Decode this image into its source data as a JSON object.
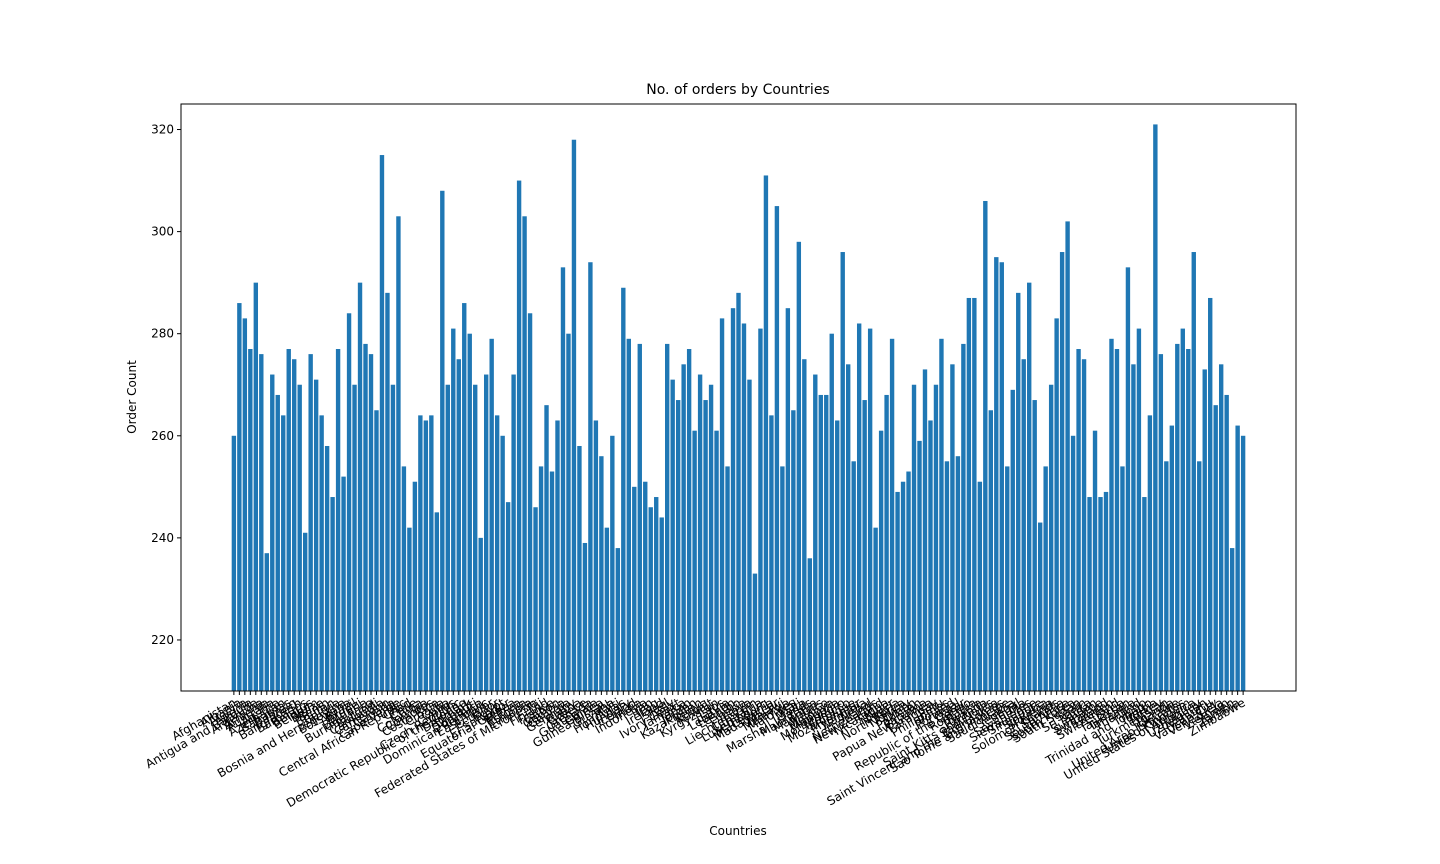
{
  "chart_data": {
    "type": "bar",
    "title": "No. of orders by Countries",
    "x_label": "Countries",
    "y_label": "Order Count",
    "color": "#1f77b4",
    "categories": [
      "Afghanistan",
      "Albania",
      "Algeria",
      "Angola",
      "Antigua and Barbuda",
      "Argentina",
      "Armenia",
      "Australia",
      "Austria",
      "Azerbaijan",
      "Bahamas",
      "Bahrain",
      "Bangladesh",
      "Barbados",
      "Belarus",
      "Belgium",
      "Belize",
      "Benin",
      "Bhutan",
      "Bolivia",
      "Bosnia and Herzegovina",
      "Botswana",
      "Brazil",
      "Brunei",
      "Bulgaria",
      "Burkina Faso",
      "Burundi",
      "Cambodia",
      "Cameroon",
      "Canada",
      "Cape Verde",
      "Central African Republic",
      "Chad",
      "Chile",
      "China",
      "Colombia",
      "Comoros",
      "Costa Rica",
      "Croatia",
      "Cuba",
      "Cyprus",
      "Czech Republic",
      "Democratic Republic of the Congo",
      "Denmark",
      "Djibouti",
      "Dominica",
      "Dominican Republic",
      "East Timor",
      "Ecuador",
      "Egypt",
      "El Salvador",
      "Equatorial Guinea",
      "Eritrea",
      "Estonia",
      "Ethiopia",
      "Federated States of Micronesia",
      "Fiji",
      "Finland",
      "France",
      "Gabon",
      "Gambia",
      "Georgia",
      "Germany",
      "Ghana",
      "Greece",
      "Grenada",
      "Guatemala",
      "Guinea",
      "Guinea-Bissau",
      "Guyana",
      "Haiti",
      "Honduras",
      "Hungary",
      "Iceland",
      "India",
      "Indonesia",
      "Iran",
      "Iraq",
      "Ireland",
      "Israel",
      "Italy",
      "Ivory Coast",
      "Jamaica",
      "Japan",
      "Jordan",
      "Kazakhstan",
      "Kenya",
      "Kuwait",
      "Kyrgyzstan",
      "Laos",
      "Latvia",
      "Lebanon",
      "Lesotho",
      "Liberia",
      "Libya",
      "Liechtenstein",
      "Lithuania",
      "Luxembourg",
      "Macedonia",
      "Madagascar",
      "Malawi",
      "Malaysia",
      "Maldives",
      "Mali",
      "Malta",
      "Marshall Islands",
      "Mauritania",
      "Mauritius",
      "Mexico",
      "Moldova",
      "Mongolia",
      "Montenegro",
      "Morocco",
      "Mozambique",
      "Myanmar",
      "Namibia",
      "Nepal",
      "Netherlands",
      "New Zealand",
      "Nicaragua",
      "Niger",
      "Nigeria",
      "North Korea",
      "Norway",
      "Oman",
      "Pakistan",
      "Panama",
      "Papua New Guinea",
      "Paraguay",
      "Peru",
      "Philippines",
      "Poland",
      "Portugal",
      "Qatar",
      "Republic of the Congo",
      "Romania",
      "Russia",
      "Rwanda",
      "Saint Kitts and Nevis",
      "Saint Lucia",
      "Saint Vincent and the Grenadines",
      "Sao Tome and Principe",
      "Saudi Arabia",
      "Senegal",
      "Serbia",
      "Seychelles",
      "Sierra Leone",
      "Singapore",
      "Slovakia",
      "Slovenia",
      "Solomon Islands",
      "Somalia",
      "South Africa",
      "South Korea",
      "South Sudan",
      "Spain",
      "Sri Lanka",
      "Sudan",
      "Suriname",
      "Swaziland",
      "Sweden",
      "Switzerland",
      "Syria",
      "Tajikistan",
      "Tanzania",
      "Thailand",
      "Togo",
      "Trinidad and Tobago",
      "Tunisia",
      "Turkey",
      "Turkmenistan",
      "Uganda",
      "Ukraine",
      "United Arab Emirates",
      "United Kingdom",
      "United States of America",
      "Uruguay",
      "Uzbekistan",
      "Vanuatu",
      "Vatican City",
      "Venezuela",
      "Vietnam",
      "Yemen",
      "Zambia",
      "Zimbabwe"
    ],
    "values": [
      260,
      286,
      283,
      277,
      290,
      276,
      237,
      272,
      268,
      264,
      277,
      275,
      270,
      241,
      276,
      271,
      264,
      258,
      248,
      277,
      252,
      284,
      270,
      290,
      278,
      276,
      265,
      315,
      288,
      270,
      303,
      254,
      242,
      251,
      264,
      263,
      264,
      245,
      308,
      270,
      281,
      275,
      286,
      280,
      270,
      240,
      272,
      279,
      264,
      260,
      247,
      272,
      310,
      303,
      284,
      246,
      254,
      266,
      253,
      263,
      293,
      280,
      318,
      258,
      239,
      294,
      263,
      256,
      242,
      260,
      238,
      289,
      279,
      250,
      278,
      251,
      246,
      248,
      244,
      278,
      271,
      267,
      274,
      277,
      261,
      272,
      267,
      270,
      261,
      283,
      254,
      285,
      288,
      282,
      271,
      233,
      281,
      311,
      264,
      305,
      254,
      285,
      265,
      298,
      275,
      236,
      272,
      268,
      268,
      280,
      263,
      296,
      274,
      255,
      282,
      267,
      281,
      242,
      261,
      268,
      279,
      249,
      251,
      253,
      270,
      259,
      273,
      263,
      270,
      279,
      255,
      274,
      256,
      278,
      287,
      287,
      251,
      306,
      265,
      295,
      294,
      254,
      269,
      288,
      275,
      290,
      267,
      243,
      254,
      270,
      283,
      296,
      302,
      260,
      277,
      275,
      248,
      261,
      248,
      249,
      279,
      277,
      254,
      293,
      274,
      281,
      248,
      264,
      321,
      276,
      255,
      262,
      278,
      281,
      277,
      296,
      255,
      273,
      287,
      266,
      274,
      268,
      238,
      262,
      260
    ],
    "ylim": [
      210,
      325
    ],
    "yticks": [
      220,
      240,
      260,
      280,
      300,
      320
    ]
  }
}
